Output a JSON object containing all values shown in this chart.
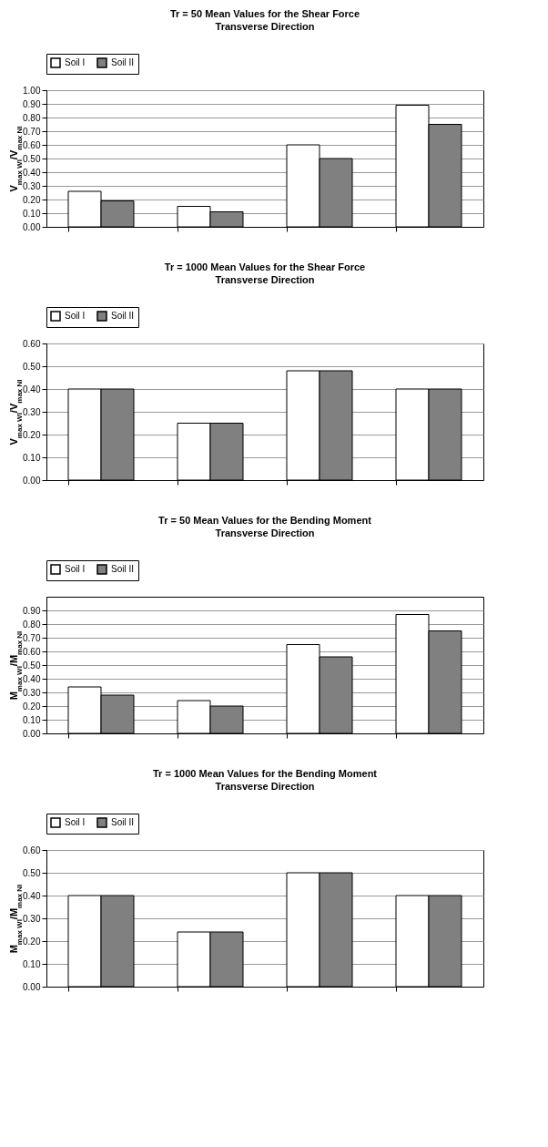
{
  "chart_data": [
    {
      "type": "bar",
      "title": "Tr = 50 Mean Values for the Shear Force",
      "subtitle": "Transverse Direction",
      "ylabel": "V$_{max WI}$/V$_{max NI}$",
      "categories": [
        null,
        null,
        null,
        null
      ],
      "series": [
        {
          "name": "Soil I",
          "color": "#ffffff",
          "values": [
            0.26,
            0.15,
            0.6,
            0.89
          ]
        },
        {
          "name": "Soil II",
          "color": "#808080",
          "values": [
            0.19,
            0.11,
            0.5,
            0.75
          ]
        }
      ],
      "ylim": [
        0,
        1
      ],
      "yticks": [
        {
          "value": 0,
          "label": "0.00"
        },
        {
          "value": 0.1,
          "label": "0.10"
        },
        {
          "value": 0.2,
          "label": "0.20"
        },
        {
          "value": 0.3,
          "label": "0.30"
        },
        {
          "value": 0.4,
          "label": "0.40"
        },
        {
          "value": 0.5,
          "label": "0.50"
        },
        {
          "value": 0.6,
          "label": "0.60"
        },
        {
          "value": 0.7,
          "label": "0.70"
        },
        {
          "value": 0.8,
          "label": "0.80"
        },
        {
          "value": 0.9,
          "label": "0.90"
        },
        {
          "value": 1,
          "label": "1.00"
        }
      ],
      "grid": "y",
      "legend": "top"
    },
    {
      "type": "bar",
      "title": "Tr = 1000 Mean Values for the Shear Force",
      "subtitle": "Transverse Direction",
      "ylabel": "V$_{max WI}$/V$_{max NI}$",
      "categories": [
        null,
        null,
        null,
        null
      ],
      "series": [
        {
          "name": "Soil I",
          "color": "#ffffff",
          "values": [
            0.4,
            0.25,
            0.48,
            0.4
          ]
        },
        {
          "name": "Soil II",
          "color": "#808080",
          "values": [
            0.4,
            0.25,
            0.48,
            0.4
          ]
        }
      ],
      "ylim": [
        0,
        0.6
      ],
      "yticks": [
        {
          "value": 0,
          "label": "0.00"
        },
        {
          "value": 0.1,
          "label": "0.10"
        },
        {
          "value": 0.2,
          "label": "0.20"
        },
        {
          "value": 0.3,
          "label": "0.30"
        },
        {
          "value": 0.4,
          "label": "0.40"
        },
        {
          "value": 0.5,
          "label": "0.50"
        },
        {
          "value": 0.6,
          "label": "0.60"
        }
      ],
      "grid": "y",
      "legend": "top"
    },
    {
      "type": "bar",
      "title": "Tr = 50 Mean Values for the Bending Moment",
      "subtitle": "Transverse Direction",
      "ylabel": "M$_{max WI}$/M$_{max NI}$",
      "categories": [
        null,
        null,
        null,
        null
      ],
      "series": [
        {
          "name": "Soil I",
          "color": "#ffffff",
          "values": [
            0.34,
            0.24,
            0.65,
            0.87
          ]
        },
        {
          "name": "Soil II",
          "color": "#808080",
          "values": [
            0.28,
            0.2,
            0.56,
            0.75
          ]
        }
      ],
      "ylim": [
        0,
        1
      ],
      "yticks": [
        {
          "value": 0,
          "label": "0.00"
        },
        {
          "value": 0.1,
          "label": "0.10"
        },
        {
          "value": 0.2,
          "label": "0.20"
        },
        {
          "value": 0.3,
          "label": "0.30"
        },
        {
          "value": 0.4,
          "label": "0.40"
        },
        {
          "value": 0.5,
          "label": "0.50"
        },
        {
          "value": 0.6,
          "label": "0.60"
        },
        {
          "value": 0.7,
          "label": "0.70"
        },
        {
          "value": 0.8,
          "label": "0.80"
        },
        {
          "value": 0.9,
          "label": "0.90"
        }
      ],
      "grid": "y",
      "legend": "top"
    },
    {
      "type": "bar",
      "title": "Tr = 1000 Mean Values for the Bending Moment",
      "subtitle": "Transverse Direction",
      "ylabel": "M$_{max WI}$/M$_{max NI}$",
      "categories": [
        null,
        null,
        null,
        null
      ],
      "series": [
        {
          "name": "Soil I",
          "color": "#ffffff",
          "values": [
            0.4,
            0.24,
            0.5,
            0.4
          ]
        },
        {
          "name": "Soil II",
          "color": "#808080",
          "values": [
            0.4,
            0.24,
            0.5,
            0.4
          ]
        }
      ],
      "ylim": [
        0,
        0.6
      ],
      "yticks": [
        {
          "value": 0,
          "label": "0.00"
        },
        {
          "value": 0.1,
          "label": "0.10"
        },
        {
          "value": 0.2,
          "label": "0.20"
        },
        {
          "value": 0.3,
          "label": "0.30"
        },
        {
          "value": 0.4,
          "label": "0.40"
        },
        {
          "value": 0.5,
          "label": "0.50"
        },
        {
          "value": 0.6,
          "label": "0.60"
        }
      ],
      "grid": "y",
      "legend": "top"
    }
  ]
}
